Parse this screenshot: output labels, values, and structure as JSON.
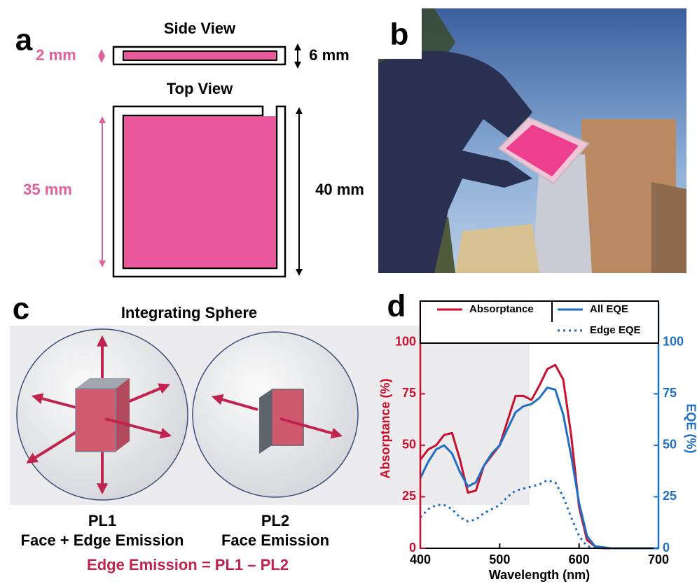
{
  "panels": {
    "a": {
      "label": "a",
      "side_title": "Side View",
      "inner_thickness": "2 mm",
      "outer_thickness": "6 mm",
      "top_title": "Top View",
      "inner_width": "35 mm",
      "outer_width": "40 mm"
    },
    "b": {
      "label": "b"
    },
    "c": {
      "label": "c",
      "title": "Integrating Sphere",
      "left_name": "PL1",
      "left_caption": "Face + Edge Emission",
      "right_name": "PL2",
      "right_caption": "Face Emission",
      "equation": "Edge Emission = PL1 – PL2"
    }
  },
  "chart_data": {
    "type": "line",
    "panel_label": "d",
    "x_label": "Wavelength (nm)",
    "y_label": "Absorptance (%)",
    "y2_label": "EQE (%)",
    "x": [
      400,
      410,
      420,
      430,
      440,
      450,
      460,
      470,
      480,
      490,
      500,
      510,
      520,
      530,
      540,
      550,
      560,
      570,
      580,
      590,
      600,
      610,
      620,
      630,
      640,
      650,
      660,
      670,
      680,
      690,
      700
    ],
    "xlim": [
      400,
      700
    ],
    "xticks": [
      400,
      500,
      600,
      700
    ],
    "ylim": [
      0,
      120
    ],
    "yticks": [
      0,
      25,
      50,
      75,
      100
    ],
    "y2lim": [
      0,
      120
    ],
    "y2ticks": [
      0,
      25,
      50,
      75,
      100
    ],
    "series": [
      {
        "name": "Absorptance",
        "color": "#c8102e",
        "style": "solid",
        "values": [
          43,
          48,
          50,
          55,
          56,
          43,
          27,
          28,
          40,
          45,
          50,
          62,
          74,
          74,
          72,
          79,
          87,
          89,
          82,
          55,
          20,
          4,
          1,
          0,
          0,
          0,
          0,
          0,
          0,
          0,
          0
        ]
      },
      {
        "name": "All EQE",
        "color": "#1f6fc5",
        "style": "solid",
        "axis": "y2",
        "values": [
          34,
          42,
          48,
          50,
          46,
          37,
          30,
          32,
          40,
          46,
          50,
          58,
          66,
          69,
          70,
          73,
          78,
          77,
          65,
          45,
          22,
          6,
          1,
          0.5,
          0,
          0,
          0,
          0,
          0,
          0,
          0
        ]
      },
      {
        "name": "Edge EQE",
        "color": "#1f6fc5",
        "style": "dotted",
        "axis": "y2",
        "values": [
          15,
          19,
          21,
          21,
          19,
          15,
          13,
          14,
          17,
          19,
          21,
          25,
          28,
          29,
          30,
          31,
          33,
          32,
          25,
          15,
          6,
          1,
          0.3,
          0,
          0,
          0,
          0,
          0,
          0,
          0,
          0
        ]
      }
    ]
  }
}
